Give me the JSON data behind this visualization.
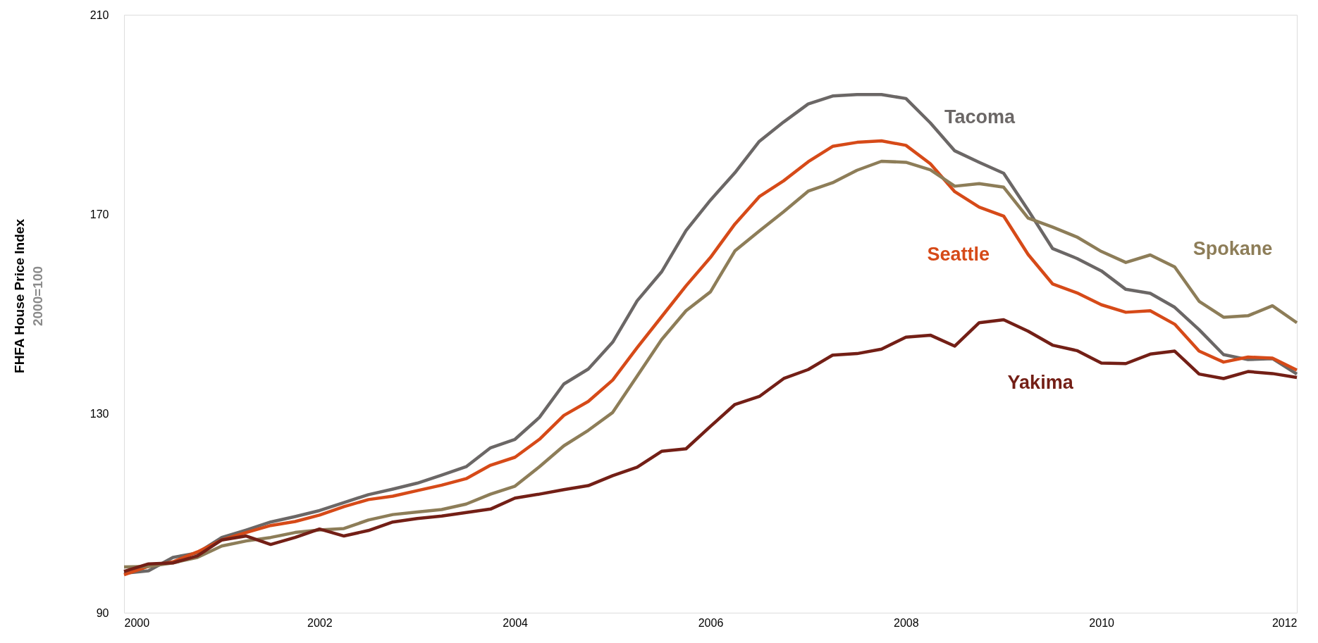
{
  "chart_data": {
    "type": "line",
    "ylabel": "FHFA House Price Index",
    "annotations": [
      "2000=100"
    ],
    "x": [
      2000,
      2000.25,
      2000.5,
      2000.75,
      2001,
      2001.25,
      2001.5,
      2001.75,
      2002,
      2002.25,
      2002.5,
      2002.75,
      2003,
      2003.25,
      2003.5,
      2003.75,
      2004,
      2004.25,
      2004.5,
      2004.75,
      2005,
      2005.25,
      2005.5,
      2005.75,
      2006,
      2006.25,
      2006.5,
      2006.75,
      2007,
      2007.25,
      2007.5,
      2007.75,
      2008,
      2008.25,
      2008.5,
      2008.75,
      2009,
      2009.25,
      2009.5,
      2009.75,
      2010,
      2010.25,
      2010.5,
      2010.75,
      2011,
      2011.25,
      2011.5,
      2011.75,
      2012
    ],
    "xlim": [
      2000,
      2012
    ],
    "xticks": [
      2000,
      2002,
      2004,
      2006,
      2008,
      2010,
      2012
    ],
    "ylim": [
      90,
      210
    ],
    "yticks": [
      90,
      130,
      170,
      210
    ],
    "grid": false,
    "legend": false,
    "marker": "none",
    "line_style": "solid",
    "series": [
      {
        "name": "Tacoma",
        "color": "#6b6766",
        "values": [
          97.9,
          98.4,
          101.1,
          102.0,
          105.1,
          106.6,
          108.2,
          109.3,
          110.5,
          112.1,
          113.7,
          114.8,
          116.0,
          117.6,
          119.3,
          123.1,
          124.8,
          129.2,
          135.9,
          138.9,
          144.3,
          152.6,
          158.4,
          166.7,
          172.8,
          178.3,
          184.6,
          188.5,
          192.1,
          193.7,
          194.0,
          194.0,
          193.2,
          188.3,
          182.7,
          180.4,
          178.2,
          170.8,
          163.1,
          161.1,
          158.6,
          154.9,
          154.1,
          151.3,
          146.8,
          141.8,
          140.8,
          141.0,
          137.9
        ]
      },
      {
        "name": "Seattle",
        "color": "#d64a18",
        "values": [
          97.6,
          99.3,
          100.2,
          102.2,
          104.6,
          106.1,
          107.5,
          108.3,
          109.6,
          111.3,
          112.7,
          113.4,
          114.5,
          115.6,
          116.9,
          119.6,
          121.2,
          124.8,
          129.6,
          132.4,
          136.7,
          143.2,
          149.4,
          155.6,
          161.3,
          168.0,
          173.5,
          176.7,
          180.5,
          183.6,
          184.4,
          184.7,
          183.8,
          180.1,
          174.5,
          171.4,
          169.6,
          161.9,
          156.0,
          154.2,
          151.8,
          150.3,
          150.6,
          147.9,
          142.5,
          140.3,
          141.3,
          141.1,
          138.7
        ]
      },
      {
        "name": "Spokane",
        "color": "#8d7d58",
        "values": [
          99.2,
          99.3,
          100.0,
          101.1,
          103.4,
          104.4,
          105.1,
          106.1,
          106.6,
          106.9,
          108.6,
          109.7,
          110.2,
          110.7,
          111.8,
          113.8,
          115.4,
          119.3,
          123.5,
          126.6,
          130.2,
          137.5,
          144.8,
          150.6,
          154.4,
          162.6,
          166.6,
          170.5,
          174.6,
          176.3,
          178.8,
          180.6,
          180.4,
          178.9,
          175.6,
          176.1,
          175.4,
          169.2,
          167.4,
          165.4,
          162.5,
          160.3,
          161.8,
          159.4,
          152.5,
          149.3,
          149.6,
          151.6,
          148.2
        ]
      },
      {
        "name": "Yakima",
        "color": "#731f16",
        "values": [
          98.3,
          99.8,
          100.0,
          101.4,
          104.6,
          105.4,
          103.7,
          105.1,
          106.8,
          105.4,
          106.5,
          108.2,
          108.9,
          109.4,
          110.1,
          110.8,
          113.0,
          113.8,
          114.7,
          115.5,
          117.5,
          119.2,
          122.4,
          122.9,
          127.4,
          131.8,
          133.4,
          137.0,
          138.8,
          141.7,
          142.0,
          142.9,
          145.3,
          145.7,
          143.5,
          148.2,
          148.8,
          146.5,
          143.7,
          142.6,
          140.1,
          140.0,
          141.9,
          142.5,
          137.9,
          137.0,
          138.4,
          138.0,
          137.2
        ]
      }
    ]
  }
}
